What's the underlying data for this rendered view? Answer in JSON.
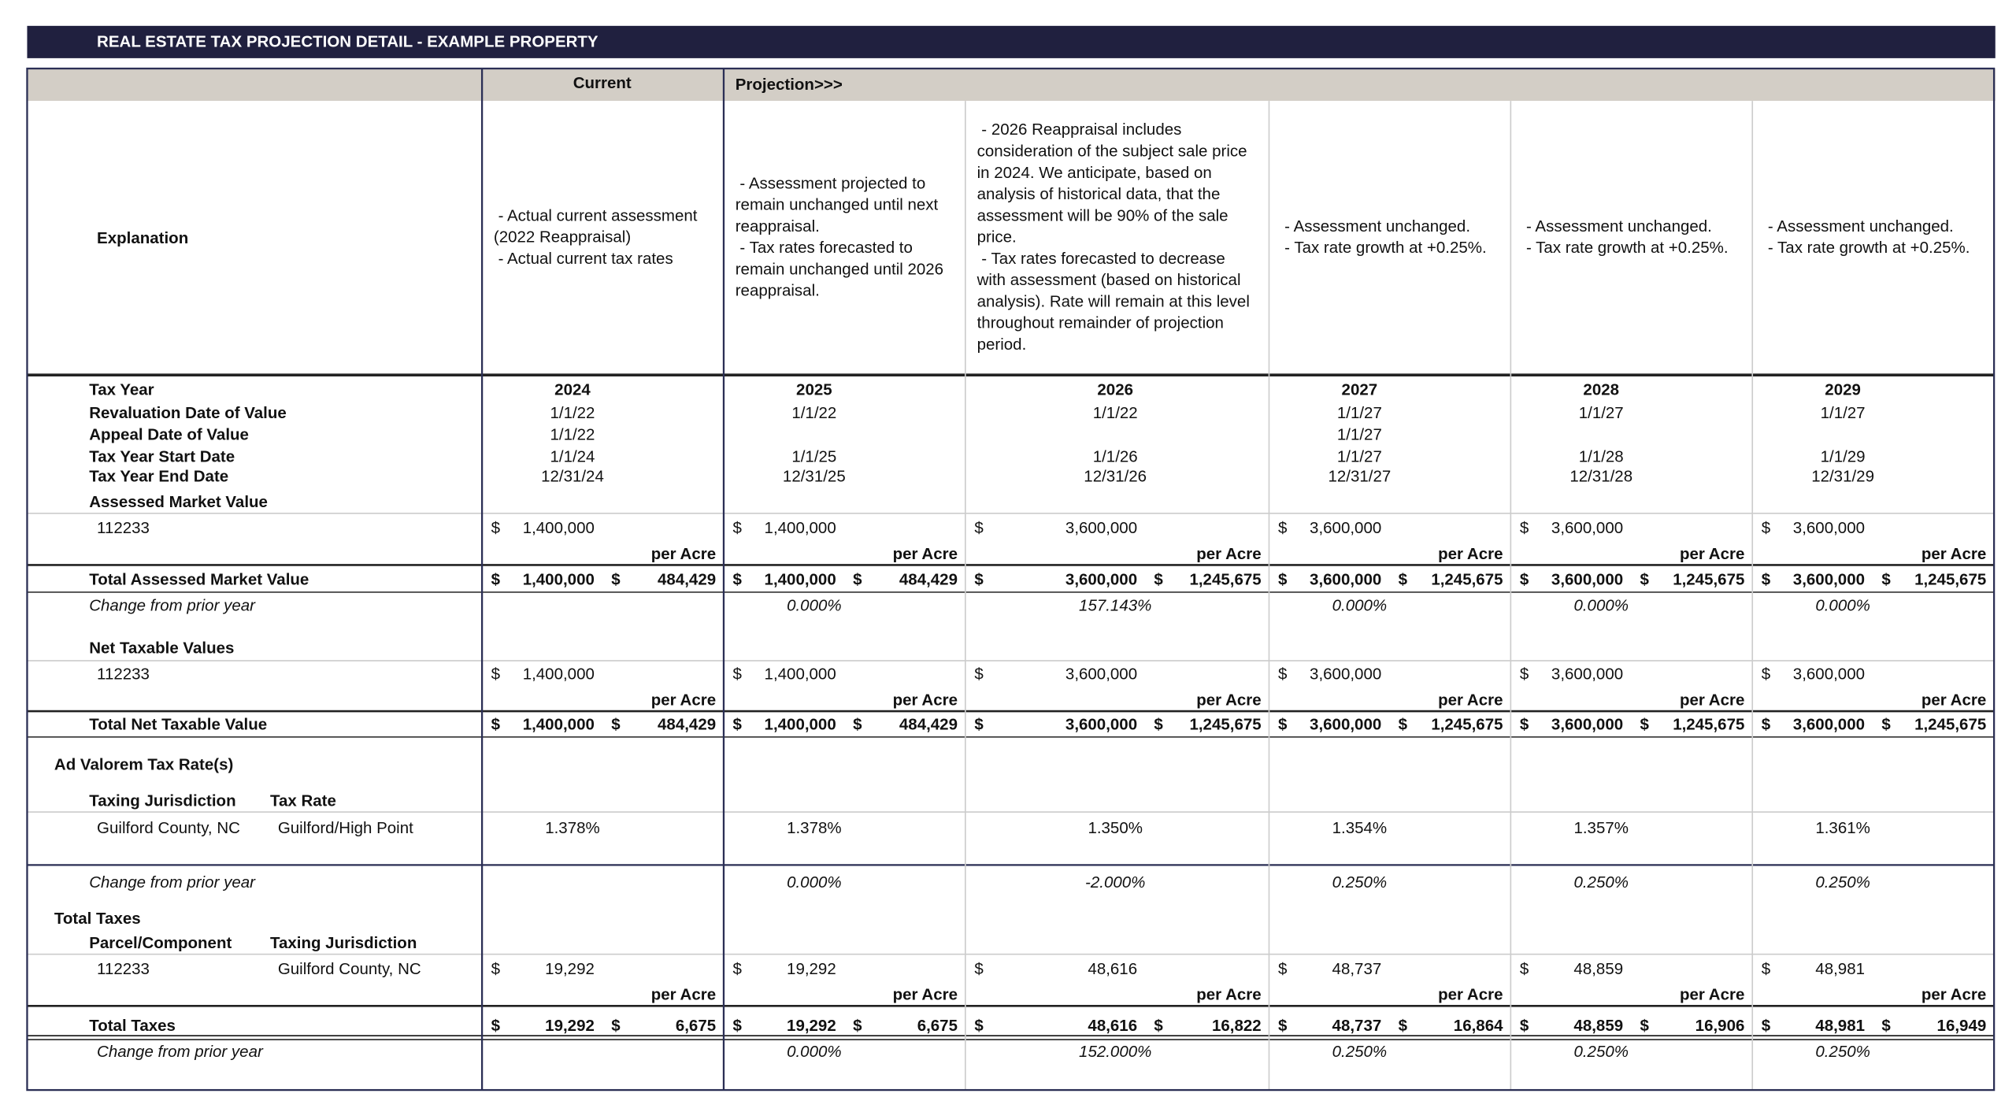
{
  "title": "REAL ESTATE TAX PROJECTION DETAIL  - EXAMPLE PROPERTY",
  "column_groups": {
    "current": "Current",
    "projection": "Projection>>>"
  },
  "labels": {
    "explanation": "Explanation",
    "tax_year": "Tax Year",
    "revaluation": "Revaluation Date of Value",
    "appeal": "Appeal Date of Value",
    "start": "Tax Year Start Date",
    "end": "Tax Year End Date",
    "assessed_section": "Assessed Market Value",
    "assessed_total": "Total Assessed Market Value",
    "change": "Change from prior year",
    "net_section": "Net Taxable Values",
    "net_total": "Total Net Taxable Value",
    "rate_section": "Ad Valorem Tax Rate(s)",
    "jurisdiction_header": "Taxing Jurisdiction",
    "rate_header": "Tax Rate",
    "taxes_section": "Total Taxes",
    "parcel_header": "Parcel/Component",
    "taxes_jurisdiction_header": "Taxing Jurisdiction",
    "taxes_total": "Total Taxes"
  },
  "parcel": "112233",
  "jurisdiction": "Guilford County, NC",
  "rate_area": "Guilford/High Point",
  "currency": "$",
  "per_acre": "per Acre",
  "columns": [
    {
      "explanation": [
        " - Actual current assessment",
        "(2022 Reappraisal)",
        " - Actual current tax rates"
      ],
      "tax_year": "2024",
      "revaluation": "1/1/22",
      "appeal": "1/1/22",
      "start": "1/1/24",
      "end": "12/31/24",
      "assessed": "1,400,000",
      "assessed_total": "1,400,000",
      "assessed_per_acre": "484,429",
      "net": "1,400,000",
      "net_total": "1,400,000",
      "net_per_acre": "484,429",
      "rate": "1.378%",
      "taxes": "19,292",
      "taxes_total": "19,292",
      "taxes_per_acre": "6,675"
    },
    {
      "explanation": [
        " - Assessment projected to",
        "remain unchanged until next",
        "reappraisal.",
        " - Tax rates forecasted to",
        "remain unchanged until 2026",
        "reappraisal."
      ],
      "tax_year": "2025",
      "revaluation": "1/1/22",
      "start": "1/1/25",
      "end": "12/31/25",
      "assessed": "1,400,000",
      "assessed_total": "1,400,000",
      "assessed_per_acre": "484,429",
      "assessed_change": "0.000%",
      "net": "1,400,000",
      "net_total": "1,400,000",
      "net_per_acre": "484,429",
      "rate": "1.378%",
      "rate_change": "0.000%",
      "taxes": "19,292",
      "taxes_total": "19,292",
      "taxes_per_acre": "6,675",
      "taxes_change": "0.000%"
    },
    {
      "explanation": [
        " - 2026 Reappraisal includes",
        "consideration of the subject sale price",
        "in 2024. We anticipate, based on",
        "analysis of historical data, that the",
        "assessment will be 90% of the sale",
        "price.",
        " - Tax rates forecasted to decrease",
        "with assessment (based on historical",
        "analysis). Rate will remain at this level",
        "throughout remainder of projection",
        "period."
      ],
      "tax_year": "2026",
      "revaluation": "1/1/22",
      "start": "1/1/26",
      "end": "12/31/26",
      "assessed": "3,600,000",
      "assessed_total": "3,600,000",
      "assessed_per_acre": "1,245,675",
      "assessed_change": "157.143%",
      "net": "3,600,000",
      "net_total": "3,600,000",
      "net_per_acre": "1,245,675",
      "rate": "1.350%",
      "rate_change": "-2.000%",
      "taxes": "48,616",
      "taxes_total": "48,616",
      "taxes_per_acre": "16,822",
      "taxes_change": "152.000%"
    },
    {
      "explanation": [
        "- Assessment unchanged.",
        "- Tax rate growth at +0.25%."
      ],
      "tax_year": "2027",
      "revaluation": "1/1/27",
      "appeal": "1/1/27",
      "start": "1/1/27",
      "end": "12/31/27",
      "assessed": "3,600,000",
      "assessed_total": "3,600,000",
      "assessed_per_acre": "1,245,675",
      "assessed_change": "0.000%",
      "net": "3,600,000",
      "net_total": "3,600,000",
      "net_per_acre": "1,245,675",
      "rate": "1.354%",
      "rate_change": "0.250%",
      "taxes": "48,737",
      "taxes_total": "48,737",
      "taxes_per_acre": "16,864",
      "taxes_change": "0.250%"
    },
    {
      "explanation": [
        "- Assessment unchanged.",
        "- Tax rate growth at +0.25%."
      ],
      "tax_year": "2028",
      "revaluation": "1/1/27",
      "start": "1/1/28",
      "end": "12/31/28",
      "assessed": "3,600,000",
      "assessed_total": "3,600,000",
      "assessed_per_acre": "1,245,675",
      "assessed_change": "0.000%",
      "net": "3,600,000",
      "net_total": "3,600,000",
      "net_per_acre": "1,245,675",
      "rate": "1.357%",
      "rate_change": "0.250%",
      "taxes": "48,859",
      "taxes_total": "48,859",
      "taxes_per_acre": "16,906",
      "taxes_change": "0.250%"
    },
    {
      "explanation": [
        "- Assessment unchanged.",
        "- Tax rate growth at +0.25%."
      ],
      "tax_year": "2029",
      "revaluation": "1/1/27",
      "start": "1/1/29",
      "end": "12/31/29",
      "assessed": "3,600,000",
      "assessed_total": "3,600,000",
      "assessed_per_acre": "1,245,675",
      "assessed_change": "0.000%",
      "net": "3,600,000",
      "net_total": "3,600,000",
      "net_per_acre": "1,245,675",
      "rate": "1.361%",
      "rate_change": "0.250%",
      "taxes": "48,981",
      "taxes_total": "48,981",
      "taxes_per_acre": "16,949",
      "taxes_change": "0.250%"
    }
  ]
}
